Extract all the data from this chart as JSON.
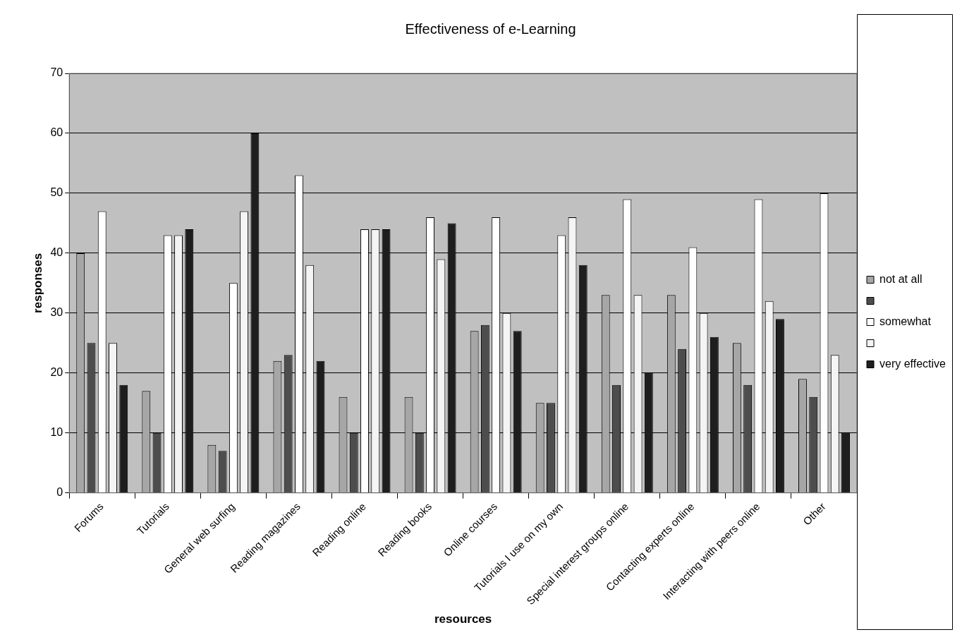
{
  "chart_data": {
    "type": "bar",
    "title": "Effectiveness of e-Learning",
    "xlabel": "resources",
    "ylabel": "responses",
    "categories": [
      "Forums",
      "Tutorials",
      "General web surfing",
      "Reading magazines",
      "Reading online",
      "Reading books",
      "Online courses",
      "Tutorials I use on my own",
      "Special interest groups online",
      "Contacting experts online",
      "Interacting with peers online",
      "Other"
    ],
    "series": [
      {
        "name": "not at all",
        "color": "#a6a6a6",
        "values": [
          40,
          17,
          8,
          22,
          16,
          16,
          27,
          15,
          33,
          33,
          25,
          19
        ]
      },
      {
        "color": "#4d4d4d",
        "values": [
          25,
          10,
          7,
          23,
          10,
          10,
          28,
          15,
          18,
          24,
          18,
          16
        ]
      },
      {
        "name": "somewhat",
        "color": "#ffffff",
        "values": [
          47,
          43,
          35,
          53,
          44,
          46,
          46,
          43,
          49,
          41,
          49,
          50
        ]
      },
      {
        "color": "#f4f4f4",
        "values": [
          25,
          43,
          47,
          38,
          44,
          39,
          30,
          46,
          33,
          30,
          32,
          23
        ]
      },
      {
        "name": "very effective",
        "color": "#1e1e1e",
        "values": [
          18,
          44,
          60,
          22,
          44,
          45,
          27,
          38,
          20,
          26,
          29,
          10
        ]
      }
    ],
    "ylim": [
      0,
      70
    ],
    "yticks": [
      0,
      10,
      20,
      30,
      40,
      50,
      60,
      70
    ],
    "grid": "y",
    "legend": "right"
  }
}
